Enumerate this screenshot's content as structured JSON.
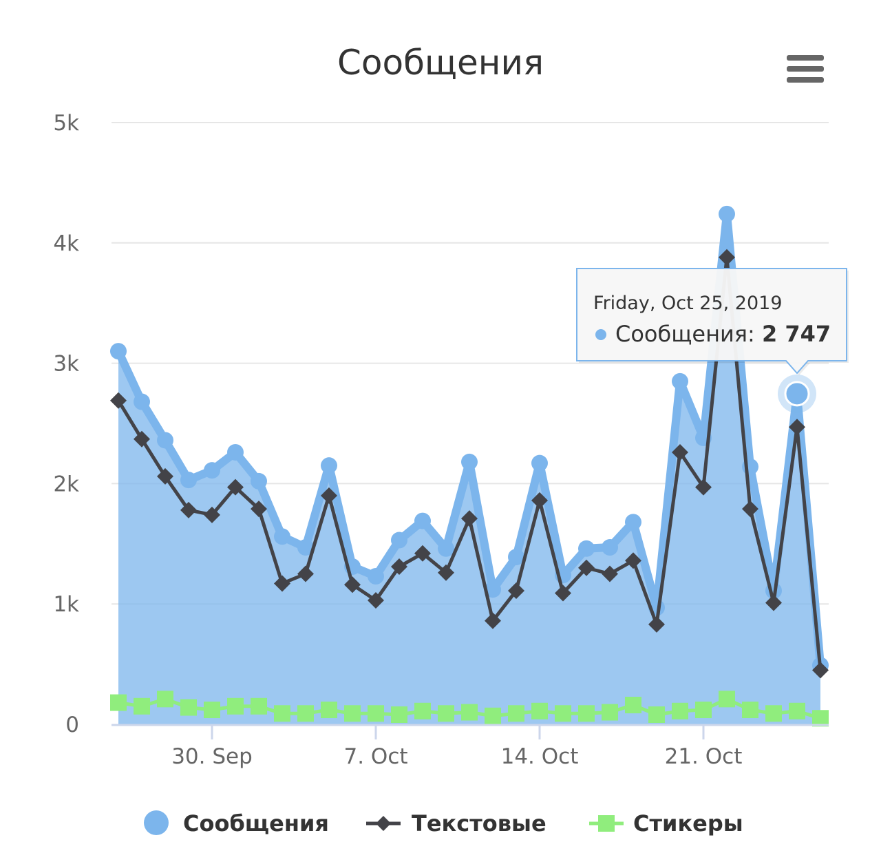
{
  "chart_data": {
    "type": "area",
    "title": "Сообщения",
    "x": [
      "2019-09-26",
      "2019-09-27",
      "2019-09-28",
      "2019-09-29",
      "2019-09-30",
      "2019-10-01",
      "2019-10-02",
      "2019-10-03",
      "2019-10-04",
      "2019-10-05",
      "2019-10-06",
      "2019-10-07",
      "2019-10-08",
      "2019-10-09",
      "2019-10-10",
      "2019-10-11",
      "2019-10-12",
      "2019-10-13",
      "2019-10-14",
      "2019-10-15",
      "2019-10-16",
      "2019-10-17",
      "2019-10-18",
      "2019-10-19",
      "2019-10-20",
      "2019-10-21",
      "2019-10-22",
      "2019-10-23",
      "2019-10-24",
      "2019-10-25",
      "2019-10-26"
    ],
    "series": [
      {
        "name": "Сообщения",
        "type": "area",
        "color": "#7cb5ec",
        "values": [
          3100,
          2680,
          2360,
          2030,
          2110,
          2260,
          2020,
          1560,
          1470,
          2150,
          1310,
          1230,
          1530,
          1690,
          1460,
          2180,
          1120,
          1390,
          2170,
          1240,
          1460,
          1470,
          1680,
          970,
          2850,
          2380,
          4240,
          2140,
          1110,
          2747,
          490
        ]
      },
      {
        "name": "Текстовые",
        "type": "line",
        "color": "#434348",
        "values": [
          2690,
          2370,
          2060,
          1780,
          1740,
          1970,
          1790,
          1170,
          1250,
          1900,
          1160,
          1030,
          1310,
          1420,
          1260,
          1710,
          860,
          1110,
          1860,
          1090,
          1300,
          1250,
          1360,
          830,
          2260,
          1970,
          3880,
          1790,
          1010,
          2470,
          450
        ]
      },
      {
        "name": "Стикеры",
        "type": "line",
        "color": "#90ed7d",
        "values": [
          180,
          150,
          210,
          140,
          120,
          150,
          150,
          90,
          90,
          120,
          90,
          90,
          80,
          110,
          90,
          100,
          70,
          90,
          110,
          90,
          90,
          100,
          160,
          80,
          110,
          120,
          210,
          120,
          90,
          110,
          50
        ]
      }
    ],
    "ylim": [
      0,
      5000
    ],
    "yticks": [
      {
        "value": 0,
        "label": "0"
      },
      {
        "value": 1000,
        "label": "1k"
      },
      {
        "value": 2000,
        "label": "2k"
      },
      {
        "value": 3000,
        "label": "3k"
      },
      {
        "value": 4000,
        "label": "4k"
      },
      {
        "value": 5000,
        "label": "5k"
      }
    ],
    "xticks": [
      {
        "index": 4,
        "label": "30. Sep"
      },
      {
        "index": 11,
        "label": "7. Oct"
      },
      {
        "index": 18,
        "label": "14. Oct"
      },
      {
        "index": 25,
        "label": "21. Oct"
      }
    ],
    "grid": true,
    "legend": "bottom-center",
    "tooltip": {
      "index": 29,
      "date_label": "Friday, Oct 25, 2019",
      "series_label": "Сообщения",
      "value_label": "2 747"
    }
  },
  "menu": {
    "icon": "hamburger-menu-icon"
  },
  "colors": {
    "grid": "#e6e6e6",
    "axis": "#ccd6eb",
    "tooltip_border": "#7cb5ec"
  }
}
